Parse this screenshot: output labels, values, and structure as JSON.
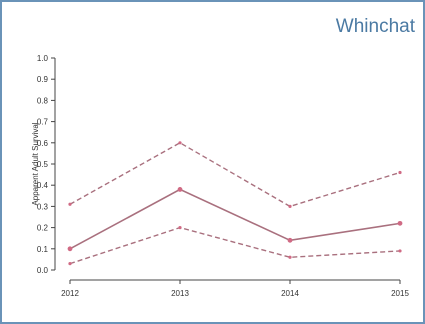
{
  "chart_data": {
    "type": "line",
    "title": "Whinchat",
    "ylabel": "Apparent Adult Survival",
    "xlabel": "",
    "x": [
      "2012",
      "2013",
      "2014",
      "2015"
    ],
    "y_ticks": [
      "0.0",
      "0.1",
      "0.2",
      "0.3",
      "0.4",
      "0.5",
      "0.6",
      "0.7",
      "0.8",
      "0.9",
      "1.0"
    ],
    "ylim": [
      0,
      1
    ],
    "grid": false,
    "series": [
      {
        "values": [
          0.1,
          0.38,
          0.14,
          0.22
        ],
        "style": "solid"
      },
      {
        "values": [
          0.31,
          0.6,
          0.3,
          0.46
        ],
        "style": "dashed"
      },
      {
        "values": [
          0.03,
          0.2,
          0.06,
          0.09
        ],
        "style": "dashed"
      }
    ],
    "colors": {
      "line": "#a9707e",
      "point": "#d06a84",
      "axis": "#444444",
      "title": "#4b7aa3",
      "border": "#6a93b8"
    }
  }
}
